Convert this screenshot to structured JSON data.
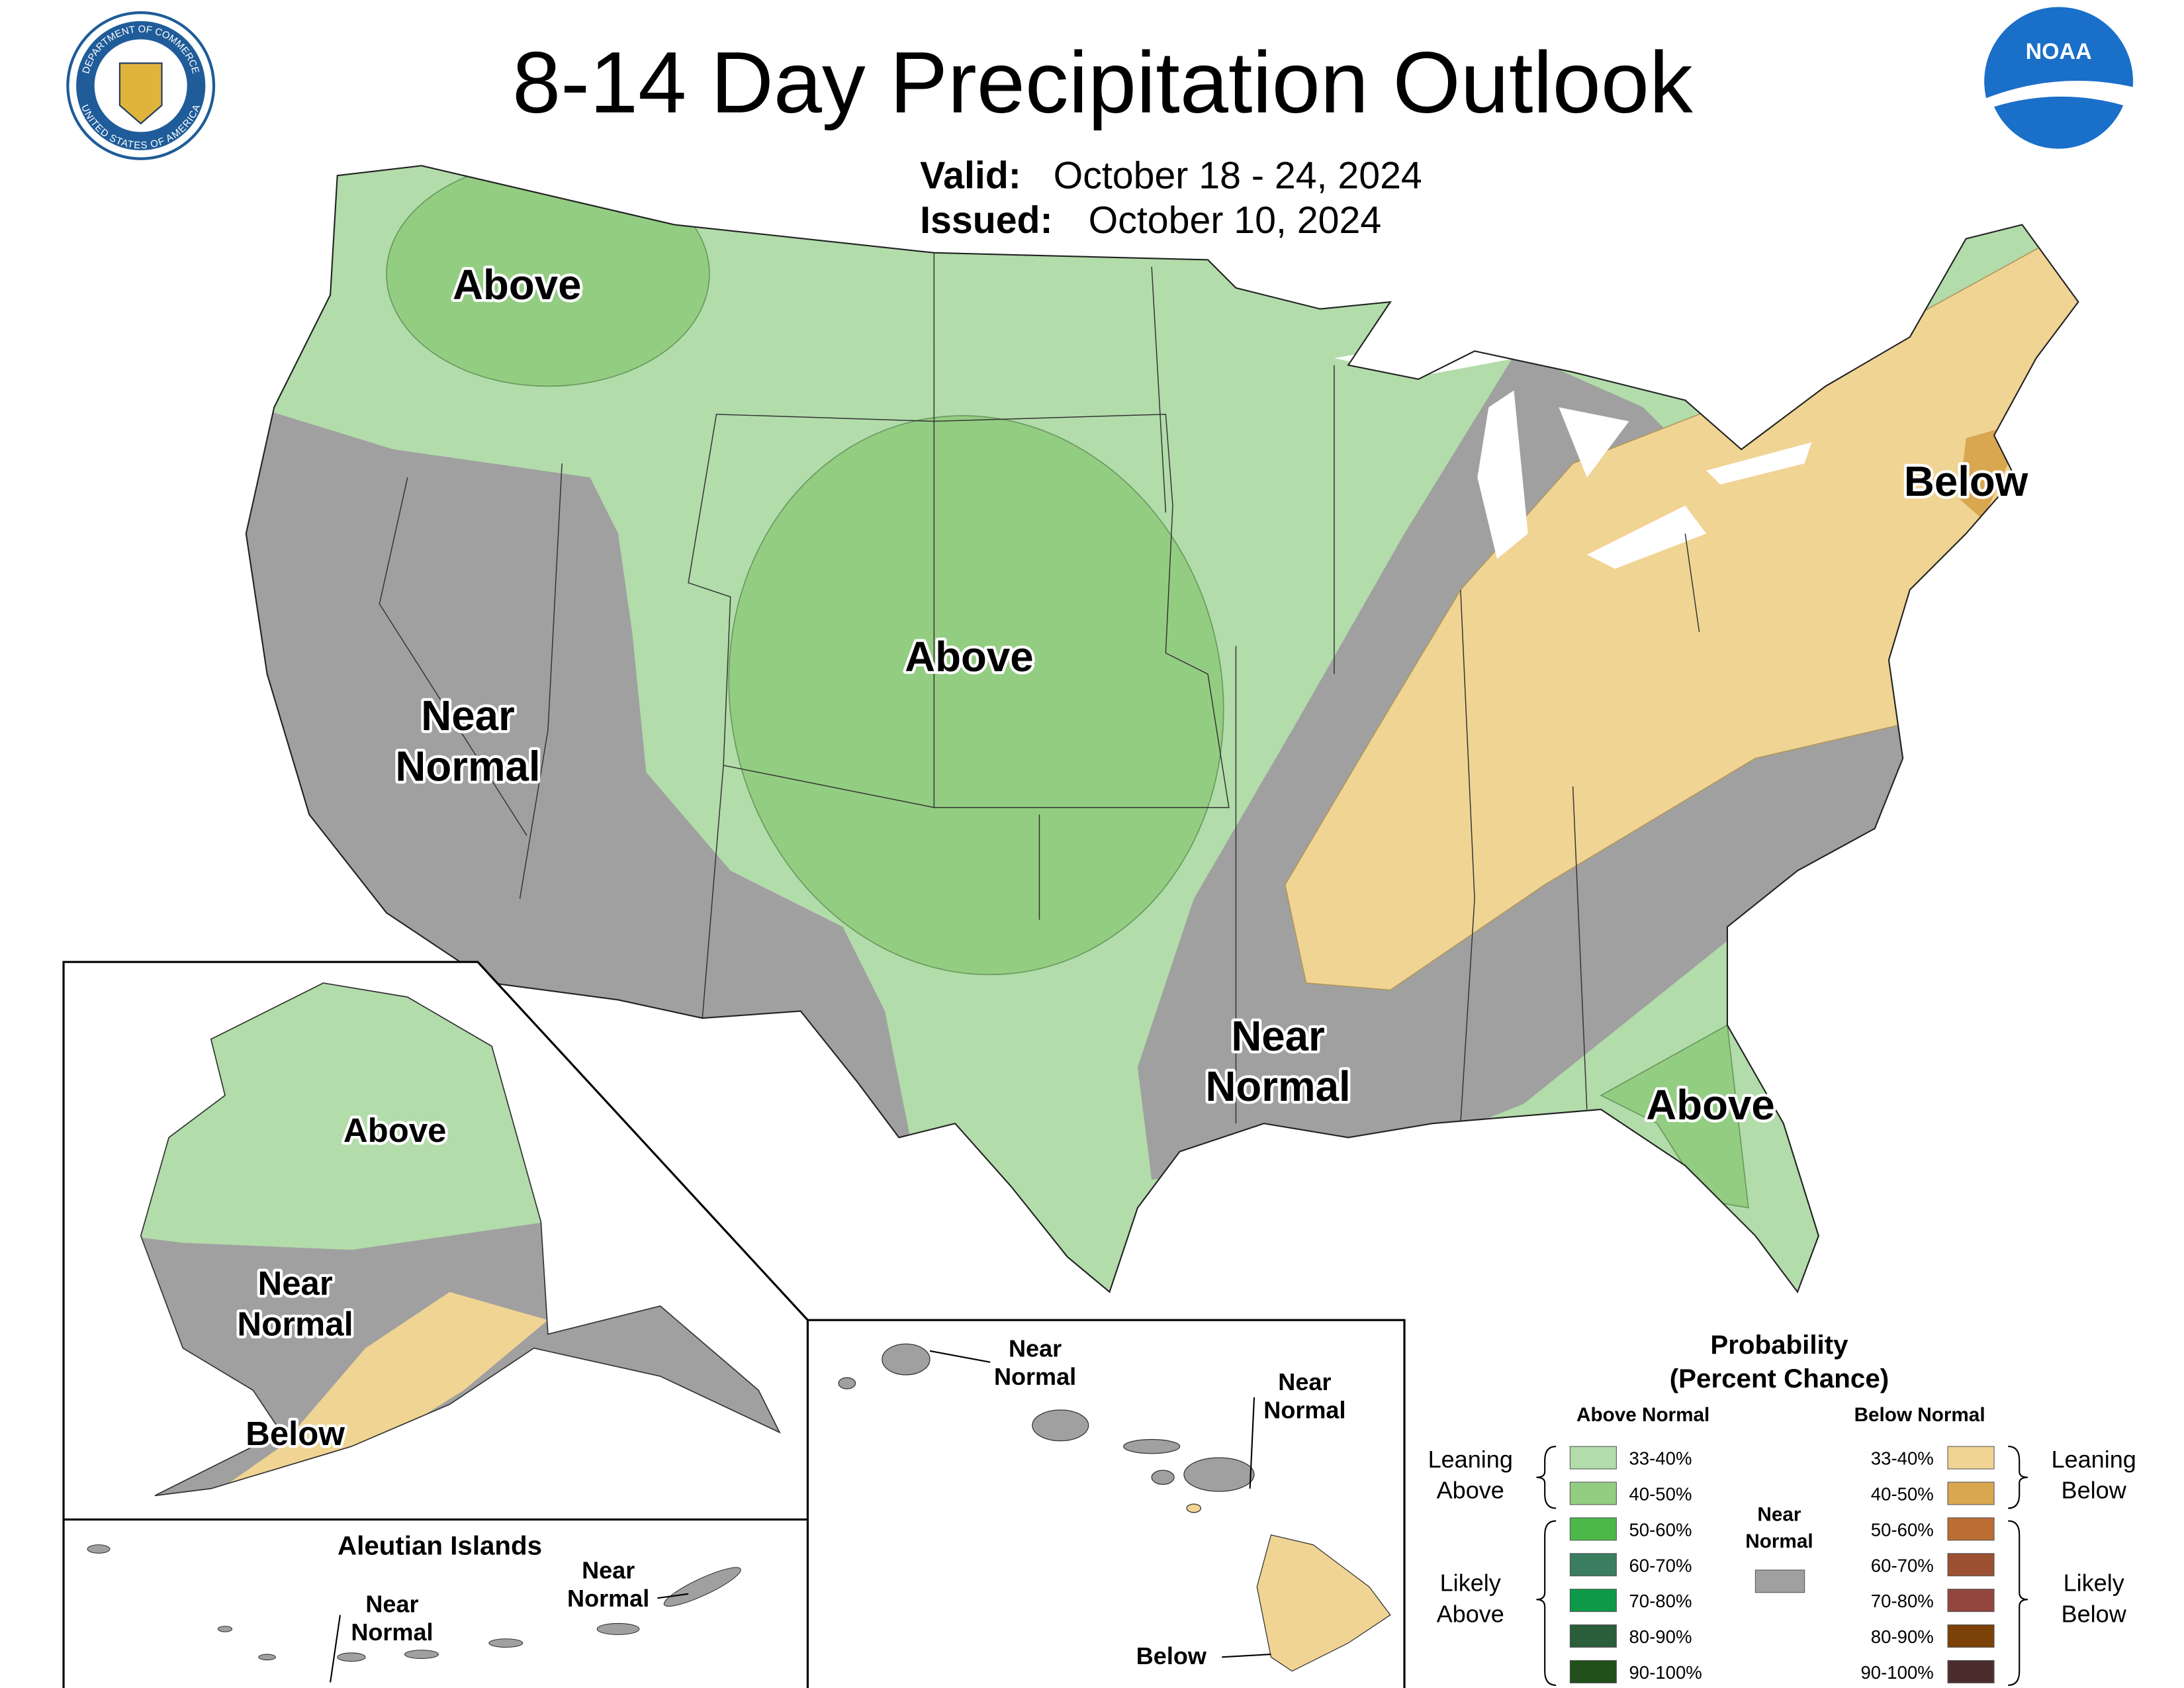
{
  "header": {
    "title": "8-14 Day Precipitation Outlook",
    "valid_label": "Valid:",
    "valid": "October 18 - 24, 2024",
    "issued_label": "Issued:",
    "issued": "October 10, 2024"
  },
  "logos": {
    "seal_top": "DEPARTMENT OF COMMERCE",
    "seal_bottom": "UNITED STATES OF AMERICA",
    "noaa": "NOAA"
  },
  "map": {
    "conus_labels": [
      [
        "Above"
      ],
      [
        "Above"
      ],
      [
        "Below"
      ],
      [
        "Near",
        "Normal"
      ],
      [
        "Near",
        "Normal"
      ],
      [
        "Above"
      ]
    ],
    "alaska_labels": [
      [
        "Above"
      ],
      [
        "Near",
        "Normal"
      ],
      [
        "Below"
      ]
    ],
    "aleutian_title": "Aleutian Islands",
    "aleutian_labels": [
      [
        "Near",
        "Normal"
      ],
      [
        "Near",
        "Normal"
      ]
    ],
    "hawaii_labels": [
      [
        "Near",
        "Normal"
      ],
      [
        "Near",
        "Normal"
      ],
      [
        "Below"
      ]
    ]
  },
  "legend": {
    "title": [
      "Probability",
      "(Percent Chance)"
    ],
    "above": {
      "heading": "Above Normal",
      "leaning": [
        "Leaning",
        "Above"
      ],
      "likely": [
        "Likely",
        "Above"
      ],
      "items": [
        {
          "label": "33-40%",
          "color": "#b2dcaa"
        },
        {
          "label": "40-50%",
          "color": "#93cd82"
        },
        {
          "label": "50-60%",
          "color": "#4cb848"
        },
        {
          "label": "60-70%",
          "color": "#3a7d5f"
        },
        {
          "label": "70-80%",
          "color": "#0d9948"
        },
        {
          "label": "80-90%",
          "color": "#2b5e3b"
        },
        {
          "label": "90-100%",
          "color": "#21501a"
        }
      ]
    },
    "below": {
      "heading": "Below Normal",
      "leaning": [
        "Leaning",
        "Below"
      ],
      "likely": [
        "Likely",
        "Below"
      ],
      "items": [
        {
          "label": "33-40%",
          "color": "#f0d493"
        },
        {
          "label": "40-50%",
          "color": "#d8a750"
        },
        {
          "label": "50-60%",
          "color": "#bb6d33"
        },
        {
          "label": "60-70%",
          "color": "#9b5031"
        },
        {
          "label": "70-80%",
          "color": "#93463e"
        },
        {
          "label": "80-90%",
          "color": "#7b4106"
        },
        {
          "label": "90-100%",
          "color": "#4c2d2e"
        }
      ]
    },
    "near": {
      "label": [
        "Near",
        "Normal"
      ],
      "color": "#a0a0a0"
    }
  }
}
